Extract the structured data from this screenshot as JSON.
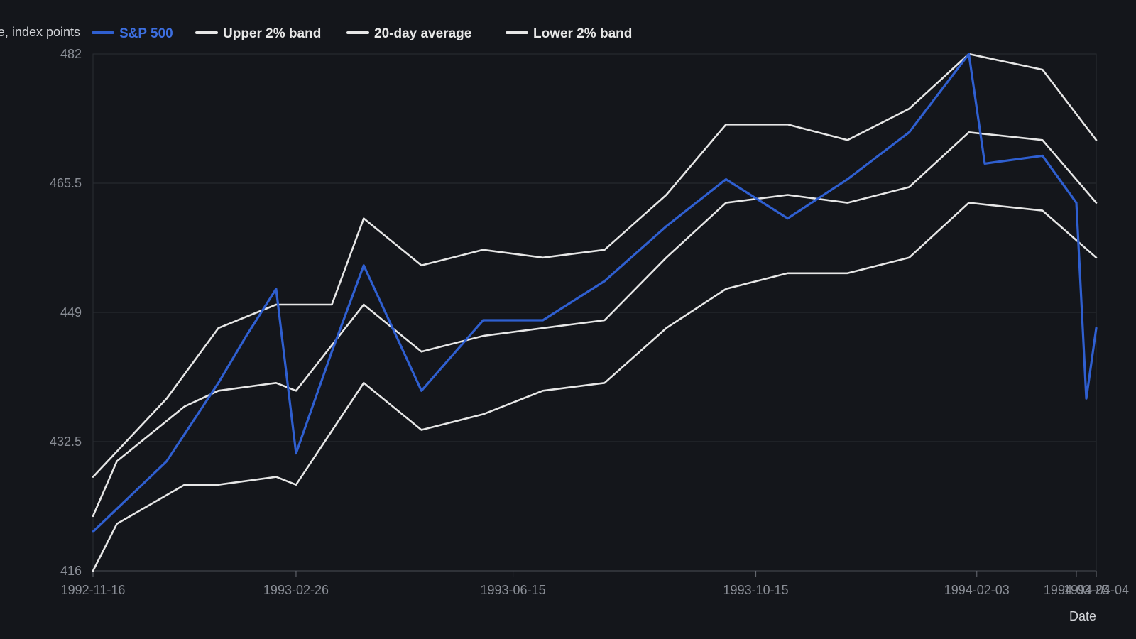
{
  "chart_data": {
    "type": "line",
    "xlabel": "Date",
    "ylabel": "Price, index points",
    "ylim": [
      416,
      482
    ],
    "xlim": [
      "1992-11-16",
      "1994-04-04"
    ],
    "yticks": [
      416,
      432.5,
      449,
      465.5,
      482
    ],
    "xticks": [
      "1992-11-16",
      "1993-02-26",
      "1993-06-15",
      "1993-10-15",
      "1994-02-03",
      "1994-03-25",
      "1994-04-04"
    ],
    "grid": "horizontal",
    "legend_position": "top-left",
    "series": [
      {
        "name": "S&P 500",
        "color": "#2f5fd0",
        "values": [
          [
            "1992-11-16",
            421
          ],
          [
            "1992-12-23",
            430
          ],
          [
            "1993-01-18",
            440
          ],
          [
            "1993-02-01",
            446
          ],
          [
            "1993-02-16",
            452
          ],
          [
            "1993-02-26",
            431
          ],
          [
            "1993-03-16",
            444
          ],
          [
            "1993-04-01",
            455
          ],
          [
            "1993-04-30",
            439
          ],
          [
            "1993-05-31",
            448
          ],
          [
            "1993-06-30",
            448
          ],
          [
            "1993-07-31",
            453
          ],
          [
            "1993-08-31",
            460
          ],
          [
            "1993-09-30",
            466
          ],
          [
            "1993-10-31",
            461
          ],
          [
            "1993-11-30",
            466
          ],
          [
            "1993-12-31",
            472
          ],
          [
            "1994-01-30",
            482
          ],
          [
            "1994-02-07",
            468
          ],
          [
            "1994-03-08",
            469
          ],
          [
            "1994-03-25",
            463
          ],
          [
            "1994-03-30",
            438
          ],
          [
            "1994-04-04",
            447
          ]
        ]
      },
      {
        "name": "Upper 2% band",
        "color": "#e6e6e6",
        "values": [
          [
            "1992-11-16",
            428
          ],
          [
            "1992-12-23",
            438
          ],
          [
            "1993-01-18",
            447
          ],
          [
            "1993-02-16",
            450
          ],
          [
            "1993-03-16",
            450
          ],
          [
            "1993-04-01",
            461
          ],
          [
            "1993-04-30",
            455
          ],
          [
            "1993-05-31",
            457
          ],
          [
            "1993-06-30",
            456
          ],
          [
            "1993-07-31",
            457
          ],
          [
            "1993-08-31",
            464
          ],
          [
            "1993-09-30",
            473
          ],
          [
            "1993-10-31",
            473
          ],
          [
            "1993-11-30",
            471
          ],
          [
            "1993-12-31",
            475
          ],
          [
            "1994-01-30",
            482
          ],
          [
            "1994-03-08",
            480
          ],
          [
            "1994-04-04",
            471
          ]
        ]
      },
      {
        "name": "20-day average",
        "color": "#e6e6e6",
        "values": [
          [
            "1992-11-16",
            423
          ],
          [
            "1992-11-28",
            430
          ],
          [
            "1993-01-01",
            437
          ],
          [
            "1993-01-18",
            439
          ],
          [
            "1993-02-16",
            440
          ],
          [
            "1993-02-26",
            439
          ],
          [
            "1993-04-01",
            450
          ],
          [
            "1993-04-30",
            444
          ],
          [
            "1993-05-31",
            446
          ],
          [
            "1993-06-30",
            447
          ],
          [
            "1993-07-31",
            448
          ],
          [
            "1993-08-31",
            456
          ],
          [
            "1993-09-30",
            463
          ],
          [
            "1993-10-31",
            464
          ],
          [
            "1993-11-30",
            463
          ],
          [
            "1993-12-31",
            465
          ],
          [
            "1994-01-30",
            472
          ],
          [
            "1994-03-08",
            471
          ],
          [
            "1994-04-04",
            463
          ]
        ]
      },
      {
        "name": "Lower 2% band",
        "color": "#e6e6e6",
        "values": [
          [
            "1992-11-16",
            416
          ],
          [
            "1992-11-28",
            422
          ],
          [
            "1993-01-01",
            427
          ],
          [
            "1993-01-18",
            427
          ],
          [
            "1993-02-16",
            428
          ],
          [
            "1993-02-26",
            427
          ],
          [
            "1993-04-01",
            440
          ],
          [
            "1993-04-30",
            434
          ],
          [
            "1993-05-31",
            436
          ],
          [
            "1993-06-30",
            439
          ],
          [
            "1993-07-31",
            440
          ],
          [
            "1993-08-31",
            447
          ],
          [
            "1993-09-30",
            452
          ],
          [
            "1993-10-31",
            454
          ],
          [
            "1993-11-30",
            454
          ],
          [
            "1993-12-31",
            456
          ],
          [
            "1994-01-30",
            463
          ],
          [
            "1994-03-08",
            462
          ],
          [
            "1994-04-04",
            456
          ]
        ]
      }
    ]
  }
}
